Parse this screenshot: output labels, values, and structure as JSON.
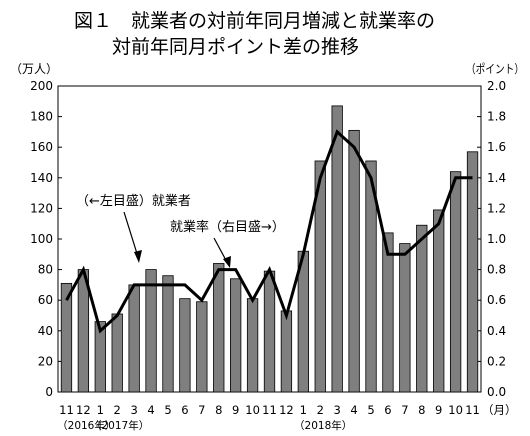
{
  "chart_data": {
    "type": "bar",
    "title_line1": "図１　就業者の対前年同月増減と就業率の",
    "title_line2": "対前年同月ポイント差の推移",
    "left_unit": "（万人）",
    "right_unit": "（ポイント）",
    "x_unit": "（月）",
    "categories": [
      "11",
      "12",
      "1",
      "2",
      "3",
      "4",
      "5",
      "6",
      "7",
      "8",
      "9",
      "10",
      "11",
      "12",
      "1",
      "2",
      "3",
      "4",
      "5",
      "6",
      "7",
      "8",
      "9",
      "10",
      "11"
    ],
    "year_labels": [
      {
        "index": 0,
        "text": "（2016年）"
      },
      {
        "index": 2,
        "text": "（2017年）"
      },
      {
        "index": 14,
        "text": "（2018年）"
      }
    ],
    "left_axis": {
      "min": 0,
      "max": 200,
      "step": 20,
      "ticks": [
        "0",
        "20",
        "40",
        "60",
        "80",
        "100",
        "120",
        "140",
        "160",
        "180",
        "200"
      ]
    },
    "right_axis": {
      "min": 0,
      "max": 2.0,
      "step": 0.2,
      "ticks": [
        "0.0",
        "0.2",
        "0.4",
        "0.6",
        "0.8",
        "1.0",
        "1.2",
        "1.4",
        "1.6",
        "1.8",
        "2.0"
      ]
    },
    "series": [
      {
        "name": "就業者",
        "kind": "bar",
        "axis": "left",
        "values": [
          71,
          80,
          46,
          51,
          70,
          80,
          76,
          61,
          59,
          84,
          74,
          61,
          79,
          53,
          92,
          151,
          187,
          171,
          151,
          104,
          97,
          109,
          119,
          144,
          157
        ]
      },
      {
        "name": "就業率",
        "kind": "line",
        "axis": "right",
        "values": [
          0.6,
          0.8,
          0.4,
          0.5,
          0.7,
          0.7,
          0.7,
          0.7,
          0.6,
          0.8,
          0.8,
          0.6,
          0.8,
          0.5,
          0.9,
          1.4,
          1.7,
          1.6,
          1.4,
          0.9,
          0.9,
          1.0,
          1.1,
          1.4,
          1.4
        ]
      }
    ],
    "annotations": [
      {
        "text": "（←左目盛）就業者",
        "target_series": "就業者"
      },
      {
        "text": "就業率（右目盛→）",
        "target_series": "就業率"
      }
    ],
    "bar_color": "#7f7f7f",
    "line_color": "#000000",
    "grid": false
  }
}
